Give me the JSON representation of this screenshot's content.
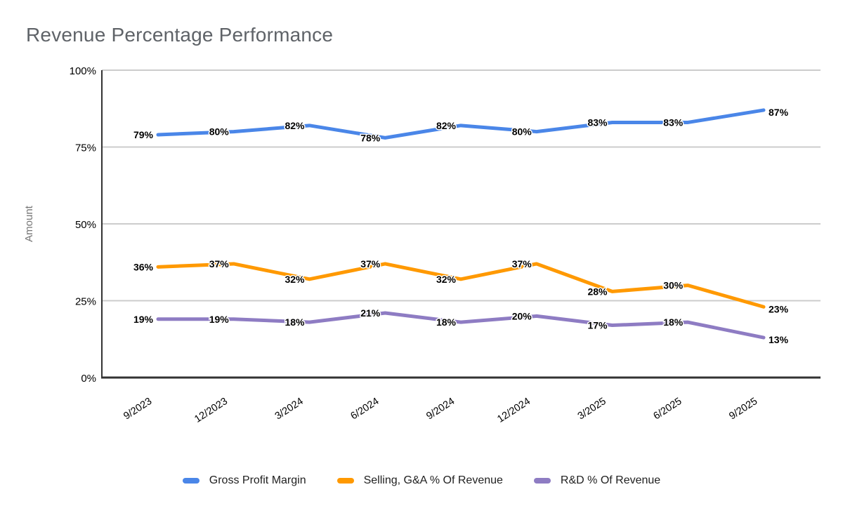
{
  "title": "Revenue Percentage Performance",
  "colors": {
    "background": "#ffffff",
    "grid": "#cccccc",
    "axis": "#333333",
    "title_text": "#5f6368",
    "axis_title_text": "#757575",
    "tick_text": "#000000",
    "data_label_text": "#000000",
    "data_label_halo": "#ffffff",
    "legend_text": "#212121",
    "series_blue": "#4a86e8",
    "series_orange": "#ff9900",
    "series_purple": "#8e7cc3"
  },
  "chart_data": {
    "type": "line",
    "title": "Revenue Percentage Performance",
    "xlabel": "",
    "ylabel": "Amount",
    "categories": [
      "9/2023",
      "12/2023",
      "3/2024",
      "6/2024",
      "9/2024",
      "12/2024",
      "3/2025",
      "6/2025",
      "9/2025"
    ],
    "series": [
      {
        "name": "Gross Profit Margin",
        "color": "#4a86e8",
        "values": [
          79,
          80,
          82,
          78,
          82,
          80,
          83,
          83,
          87
        ]
      },
      {
        "name": "Selling, G&A % Of Revenue",
        "color": "#ff9900",
        "values": [
          36,
          37,
          32,
          37,
          32,
          37,
          28,
          30,
          23
        ]
      },
      {
        "name": "R&D % Of Revenue",
        "color": "#8e7cc3",
        "values": [
          19,
          19,
          18,
          21,
          18,
          20,
          17,
          18,
          13
        ]
      }
    ],
    "ylim": [
      0,
      100
    ],
    "yticks": [
      0,
      25,
      50,
      75,
      100
    ],
    "ytick_labels": [
      "0%",
      "25%",
      "50%",
      "75%",
      "100%"
    ],
    "data_label_suffix": "%",
    "grid": true,
    "legend_position": "bottom",
    "x_label_rotation_deg": -33
  }
}
